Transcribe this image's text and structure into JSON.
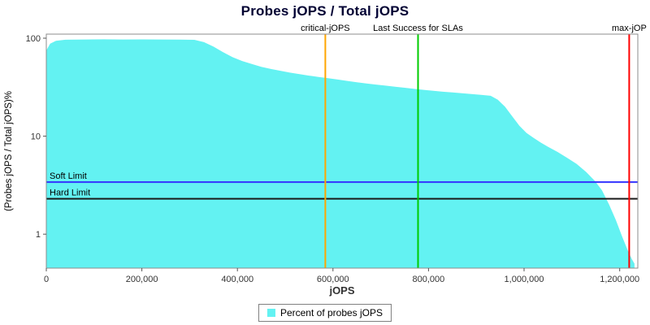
{
  "title": "Probes jOPS / Total jOPS",
  "legend": {
    "label": "Percent of probes jOPS",
    "swatch_color": "#63F2F2"
  },
  "chart_data": {
    "type": "area",
    "title": "Probes jOPS / Total jOPS",
    "xlabel": "jOPS",
    "ylabel": "(Probes jOPS / Total jOPS)%",
    "x_scale": "linear",
    "y_scale": "log",
    "xlim": [
      0,
      1238000
    ],
    "ylim": [
      0.45,
      110
    ],
    "x_ticks": [
      0,
      200000,
      400000,
      600000,
      800000,
      1000000,
      1200000
    ],
    "x_tick_labels": [
      "0",
      "200,000",
      "400,000",
      "600,000",
      "800,000",
      "1,000,000",
      "1,200,000"
    ],
    "y_ticks": [
      1,
      10,
      100
    ],
    "y_tick_labels": [
      "1",
      "10",
      "100"
    ],
    "grid": false,
    "legend_position": "bottom",
    "series": [
      {
        "name": "Percent of probes jOPS",
        "color": "#63F2F2",
        "points": [
          [
            0,
            75
          ],
          [
            8000,
            88
          ],
          [
            20000,
            94
          ],
          [
            40000,
            96.5
          ],
          [
            80000,
            97
          ],
          [
            120000,
            97.3
          ],
          [
            160000,
            97
          ],
          [
            200000,
            97.2
          ],
          [
            240000,
            97
          ],
          [
            280000,
            96.8
          ],
          [
            310000,
            96.3
          ],
          [
            330000,
            91
          ],
          [
            350000,
            82
          ],
          [
            370000,
            72
          ],
          [
            390000,
            64
          ],
          [
            410000,
            58.5
          ],
          [
            430000,
            54.5
          ],
          [
            450000,
            51
          ],
          [
            470000,
            48.5
          ],
          [
            490000,
            46.5
          ],
          [
            510000,
            44.5
          ],
          [
            530000,
            43
          ],
          [
            550000,
            41.5
          ],
          [
            570000,
            40.2
          ],
          [
            590000,
            39
          ],
          [
            610000,
            37.8
          ],
          [
            630000,
            36.6
          ],
          [
            650000,
            35.5
          ],
          [
            670000,
            34.5
          ],
          [
            690000,
            33.6
          ],
          [
            710000,
            32.8
          ],
          [
            730000,
            32
          ],
          [
            750000,
            31.2
          ],
          [
            770000,
            30.4
          ],
          [
            790000,
            29.7
          ],
          [
            810000,
            29
          ],
          [
            830000,
            28.4
          ],
          [
            850000,
            27.9
          ],
          [
            870000,
            27.4
          ],
          [
            890000,
            26.9
          ],
          [
            910000,
            26.4
          ],
          [
            930000,
            25.8
          ],
          [
            945000,
            23.5
          ],
          [
            960000,
            20
          ],
          [
            975000,
            16
          ],
          [
            990000,
            12.8
          ],
          [
            1005000,
            10.8
          ],
          [
            1020000,
            9.6
          ],
          [
            1035000,
            8.6
          ],
          [
            1050000,
            7.8
          ],
          [
            1070000,
            6.9
          ],
          [
            1090000,
            6
          ],
          [
            1110000,
            5.2
          ],
          [
            1130000,
            4.3
          ],
          [
            1148000,
            3.5
          ],
          [
            1163000,
            2.8
          ],
          [
            1178000,
            2
          ],
          [
            1192000,
            1.4
          ],
          [
            1205000,
            0.95
          ],
          [
            1216000,
            0.7
          ],
          [
            1225000,
            0.56
          ],
          [
            1231000,
            0.5
          ]
        ]
      }
    ],
    "vlines": [
      {
        "label": "critical-jOPS",
        "x": 584000,
        "color": "#FFA500"
      },
      {
        "label": "Last Success for SLAs",
        "x": 778000,
        "color": "#00CC00"
      },
      {
        "label": "max-jOP",
        "x": 1220000,
        "color": "#FF0000"
      }
    ],
    "hlines": [
      {
        "label": "Soft Limit",
        "y": 3.4,
        "color": "#3333FF"
      },
      {
        "label": "Hard Limit",
        "y": 2.3,
        "color": "#1A1A1A"
      }
    ]
  }
}
